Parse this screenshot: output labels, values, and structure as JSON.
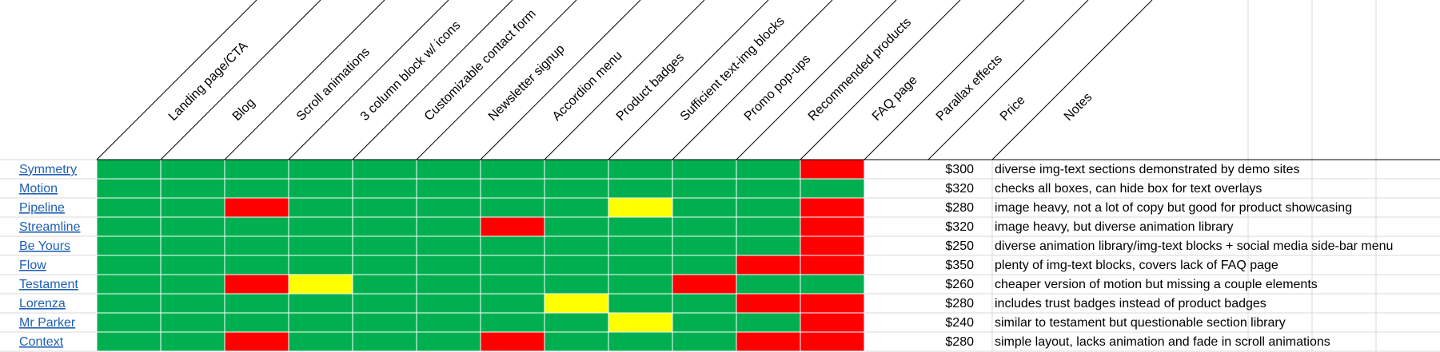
{
  "colors": {
    "green": "#00b050",
    "red": "#ff0000",
    "yellow": "#ffff00",
    "link": "#1f5fb5",
    "grid": "#d9d9d9"
  },
  "headers": [
    "Landing page/CTA",
    "Blog",
    "Scroll animations",
    "3 column block w/ icons",
    "Customizable contact form",
    "Newsletter signup",
    "Accordion menu",
    "Product badges",
    "Sufficient text-img blocks",
    "Promo pop-ups",
    "Recommended products",
    "FAQ page",
    "Parallax effects",
    "Price",
    "Notes"
  ],
  "rows": [
    {
      "name": "Symmetry",
      "status": [
        "g",
        "g",
        "g",
        "g",
        "g",
        "g",
        "g",
        "g",
        "g",
        "g",
        "g",
        "r"
      ],
      "price": "$300",
      "notes": "diverse img-text sections demonstrated by demo sites"
    },
    {
      "name": "Motion",
      "status": [
        "g",
        "g",
        "g",
        "g",
        "g",
        "g",
        "g",
        "g",
        "g",
        "g",
        "g",
        "g"
      ],
      "price": "$320",
      "notes": "checks all boxes, can hide box for text overlays"
    },
    {
      "name": "Pipeline",
      "status": [
        "g",
        "g",
        "r",
        "g",
        "g",
        "g",
        "g",
        "g",
        "y",
        "g",
        "g",
        "r"
      ],
      "price": "$280",
      "notes": "image heavy, not a lot of copy but good for product showcasing"
    },
    {
      "name": "Streamline",
      "status": [
        "g",
        "g",
        "g",
        "g",
        "g",
        "g",
        "r",
        "g",
        "g",
        "g",
        "g",
        "r"
      ],
      "price": "$320",
      "notes": "image heavy, but diverse animation library"
    },
    {
      "name": "Be Yours",
      "status": [
        "g",
        "g",
        "g",
        "g",
        "g",
        "g",
        "g",
        "g",
        "g",
        "g",
        "g",
        "r"
      ],
      "price": "$250",
      "notes": "diverse animation library/img-text blocks + social media side-bar menu"
    },
    {
      "name": "Flow",
      "status": [
        "g",
        "g",
        "g",
        "g",
        "g",
        "g",
        "g",
        "g",
        "g",
        "g",
        "r",
        "r"
      ],
      "price": "$350",
      "notes": "plenty of img-text blocks, covers lack of FAQ page"
    },
    {
      "name": "Testament",
      "status": [
        "g",
        "g",
        "r",
        "y",
        "g",
        "g",
        "g",
        "g",
        "g",
        "r",
        "g",
        "g"
      ],
      "price": "$260",
      "notes": "cheaper version of motion but missing a couple elements"
    },
    {
      "name": "Lorenza",
      "status": [
        "g",
        "g",
        "g",
        "g",
        "g",
        "g",
        "g",
        "y",
        "g",
        "g",
        "r",
        "r"
      ],
      "price": "$280",
      "notes": "includes trust badges instead of product badges"
    },
    {
      "name": "Mr Parker",
      "status": [
        "g",
        "g",
        "g",
        "g",
        "g",
        "g",
        "g",
        "g",
        "y",
        "g",
        "g",
        "r"
      ],
      "price": "$240",
      "notes": "similar to testament but questionable section library"
    },
    {
      "name": "Context",
      "status": [
        "g",
        "g",
        "r",
        "g",
        "g",
        "g",
        "r",
        "g",
        "g",
        "g",
        "r",
        "r"
      ],
      "price": "$280",
      "notes": "simple layout, lacks animation and fade in scroll animations"
    }
  ]
}
